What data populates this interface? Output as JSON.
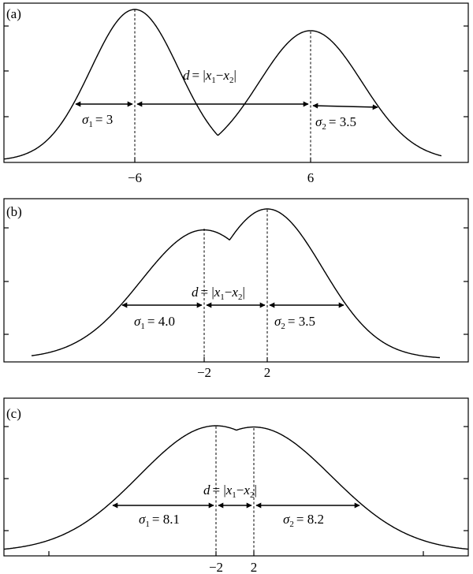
{
  "panels": [
    {
      "label": "(a)",
      "x1": -6,
      "x2": 6,
      "sigma1": 3,
      "sigma2": 3.5,
      "a1": 1.0,
      "a2": 0.86,
      "xlim": [
        -15,
        15
      ],
      "tick_labels": [
        "−6",
        "6"
      ],
      "sigma1_label": "= 3",
      "sigma2_label": "= 3.5",
      "d_label": "d",
      "d_eq": "= |",
      "d_x1": "x",
      "d_minus": "−",
      "d_x2": "x",
      "d_close": "|",
      "sub1": "1",
      "sub2": "2"
    },
    {
      "label": "(b)",
      "x1": -2,
      "x2": 2,
      "sigma1": 4.0,
      "sigma2": 3.5,
      "a1": 0.86,
      "a2": 1.0,
      "xlim": [
        -13,
        13
      ],
      "tick_labels": [
        "−2",
        "2"
      ],
      "sigma1_label": "= 4.0",
      "sigma2_label": "= 3.5",
      "d_label": "d",
      "d_eq": "= |",
      "d_x1": "x",
      "d_minus": "−",
      "d_x2": "x",
      "d_close": "|",
      "sub1": "1",
      "sub2": "2"
    },
    {
      "label": "(c)",
      "x1": -2,
      "x2": 2,
      "sigma1": 8.1,
      "sigma2": 8.2,
      "a1": 1.0,
      "a2": 0.99,
      "xlim": [
        -24,
        24
      ],
      "tick_labels": [
        "−2",
        "2"
      ],
      "sigma1_label": "= 8.1",
      "sigma2_label": "= 8.2",
      "d_label": "d",
      "d_eq": "= |",
      "d_x1": "x",
      "d_minus": "−",
      "d_x2": "x",
      "d_close": "|",
      "sub1": "1",
      "sub2": "2"
    }
  ],
  "symbols": {
    "sigma": "σ"
  }
}
